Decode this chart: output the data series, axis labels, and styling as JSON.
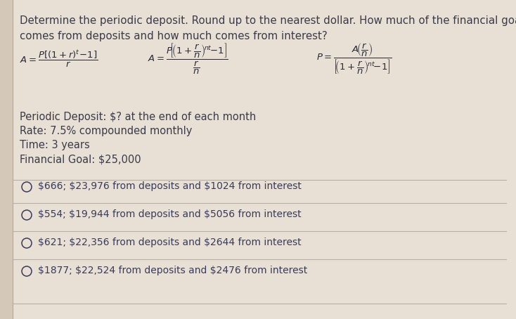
{
  "title_line1": "Determine the periodic deposit. Round up to the nearest dollar. How much of the financial goal",
  "title_line2": "comes from deposits and how much comes from interest?",
  "bg_color": "#d4c9b8",
  "bg_color_light": "#e8e0d4",
  "text_color": "#3a3a4a",
  "formula_color": "#2a2a3a",
  "option_text_color": "#3a3a5a",
  "info_lines": [
    "Periodic Deposit: $? at the end of each month",
    "Rate: 7.5% compounded monthly",
    "Time: 3 years",
    "Financial Goal: $25,000"
  ],
  "options": [
    "$666; $23,976 from deposits and $1024 from interest",
    "$554; $19,944 from deposits and $5056 from interest",
    "$621; $22,356 from deposits and $2644 from interest",
    "$1877; $22,524 from deposits and $2476 from interest"
  ],
  "divider_color": "#b8b0a4",
  "title_fontsize": 10.8,
  "info_fontsize": 10.5,
  "option_fontsize": 10.0,
  "formula_fontsize": 9.5
}
